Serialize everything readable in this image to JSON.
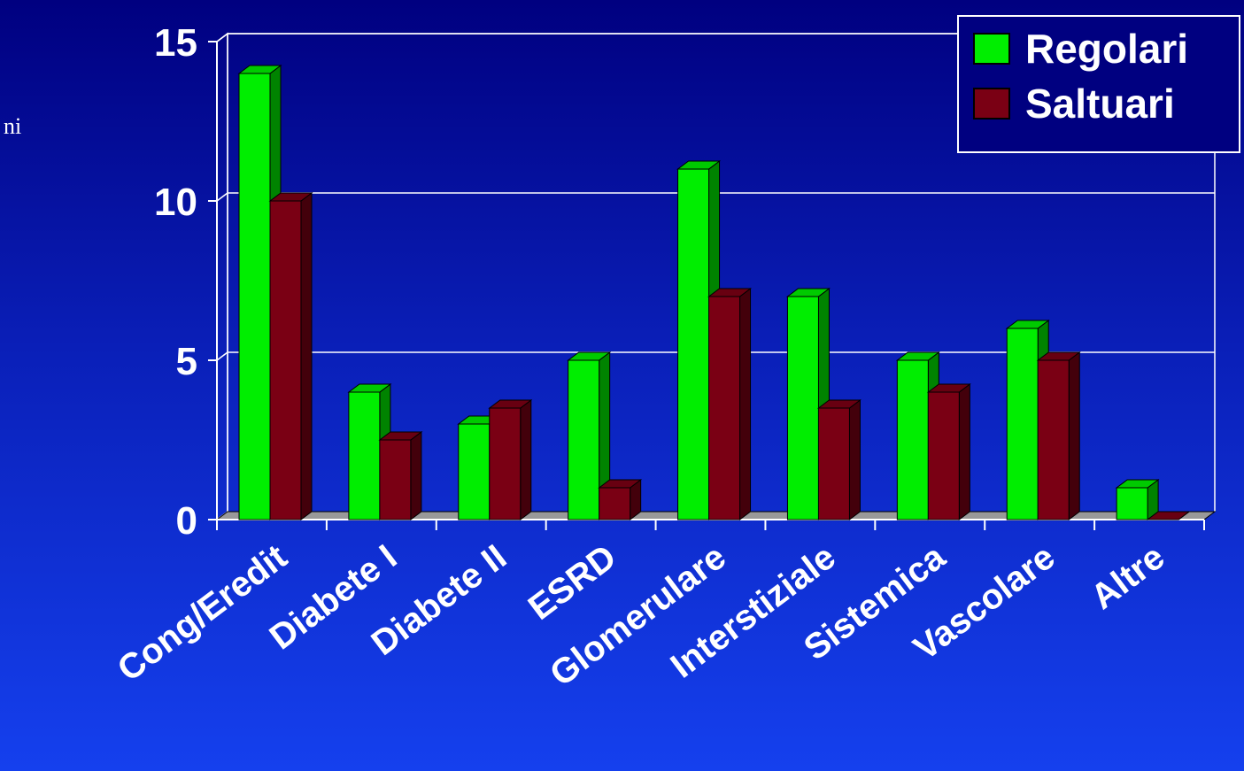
{
  "side_text": "ni",
  "colors": {
    "regolari": "#00ee00",
    "saltuari": "#7a0014",
    "axis": "#ffffff",
    "floor": "#999999"
  },
  "chart_data": {
    "type": "bar",
    "title": "",
    "xlabel": "",
    "ylabel": "",
    "categories": [
      "Cong/Eredit",
      "Diabete I",
      "Diabete II",
      "ESRD",
      "Glomerulare",
      "Interstiziale",
      "Sistemica",
      "Vascolare",
      "Altre"
    ],
    "series": [
      {
        "name": "Regolari",
        "values": [
          14,
          4,
          3,
          5,
          11,
          7,
          5,
          6,
          1
        ]
      },
      {
        "name": "Saltuari",
        "values": [
          10,
          2.5,
          3.5,
          1,
          7,
          3.5,
          4,
          5,
          0
        ]
      }
    ],
    "ylim": [
      0,
      15
    ],
    "yticks": [
      "0",
      "5",
      "10",
      "15"
    ],
    "grid": true,
    "legend": "top-right",
    "style": "3d"
  }
}
